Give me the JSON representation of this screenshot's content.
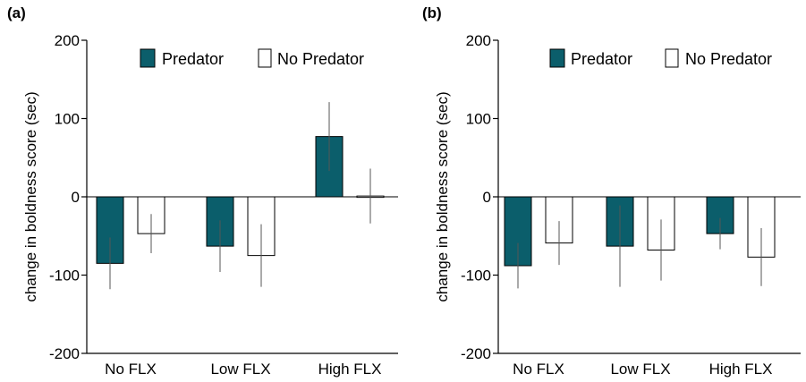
{
  "colors": {
    "predator": "#0b5e6b",
    "no_predator": "#ffffff",
    "axis": "#000000",
    "errorbar": "#555555"
  },
  "chart_data": [
    {
      "panel_label": "(a)",
      "type": "bar",
      "ylabel": "change in boldness score (sec)",
      "ylim": [
        -200,
        200
      ],
      "yticks": [
        -200,
        -100,
        0,
        100,
        200
      ],
      "ytick_labels": [
        "-200",
        "-100",
        "0",
        "100",
        "200"
      ],
      "categories": [
        "No FLX",
        "Low FLX",
        "High FLX"
      ],
      "legend_position": "top-right",
      "series": [
        {
          "name": "Predator",
          "values": [
            -85,
            -63,
            77
          ],
          "errors": [
            33,
            33,
            44
          ]
        },
        {
          "name": "No Predator",
          "values": [
            -47,
            -75,
            1
          ],
          "errors": [
            25,
            40,
            35
          ]
        }
      ]
    },
    {
      "panel_label": "(b)",
      "type": "bar",
      "ylabel": "change in boldness score (sec)",
      "ylim": [
        -200,
        200
      ],
      "yticks": [
        -200,
        -100,
        0,
        100,
        200
      ],
      "ytick_labels": [
        "-200",
        "-100",
        "0",
        "100",
        "200"
      ],
      "categories": [
        "No FLX",
        "Low FLX",
        "High FLX"
      ],
      "legend_position": "top-right",
      "series": [
        {
          "name": "Predator",
          "values": [
            -88,
            -63,
            -47
          ],
          "errors": [
            29,
            52,
            20
          ]
        },
        {
          "name": "No Predator",
          "values": [
            -59,
            -68,
            -77
          ],
          "errors": [
            28,
            39,
            37
          ]
        }
      ]
    }
  ]
}
